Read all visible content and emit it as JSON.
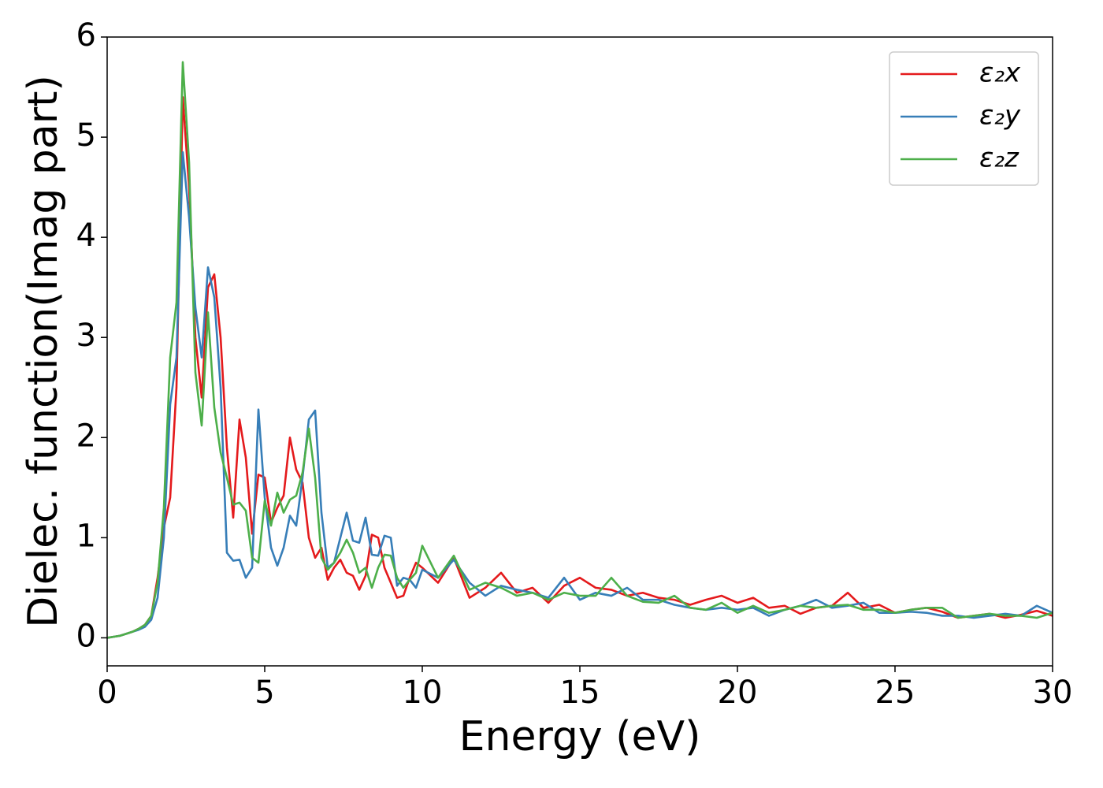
{
  "chart_data": {
    "type": "line",
    "xlabel": "Energy (eV)",
    "ylabel": "Dielec. function(Imag part)",
    "x": [
      0,
      0.2,
      0.4,
      0.6,
      0.8,
      1.0,
      1.2,
      1.4,
      1.6,
      1.8,
      2.0,
      2.2,
      2.4,
      2.6,
      2.8,
      3.0,
      3.2,
      3.4,
      3.6,
      3.8,
      4.0,
      4.2,
      4.4,
      4.6,
      4.8,
      5.0,
      5.2,
      5.4,
      5.6,
      5.8,
      6.0,
      6.2,
      6.4,
      6.6,
      6.8,
      7.0,
      7.2,
      7.4,
      7.6,
      7.8,
      8.0,
      8.2,
      8.4,
      8.6,
      8.8,
      9.0,
      9.2,
      9.4,
      9.6,
      9.8,
      10.0,
      10.5,
      11,
      11.5,
      12,
      12.5,
      13,
      13.5,
      14,
      14.5,
      15,
      15.5,
      16,
      16.5,
      17,
      17.5,
      18,
      18.5,
      19,
      19.5,
      20,
      20.5,
      21,
      21.5,
      22,
      22.5,
      23,
      23.5,
      24,
      24.5,
      25,
      25.5,
      26,
      26.5,
      27,
      27.5,
      28,
      28.5,
      29,
      29.5,
      30
    ],
    "series": [
      {
        "name": "ε₂x",
        "color": "#e41a1c",
        "values": [
          0,
          0.01,
          0.02,
          0.04,
          0.06,
          0.09,
          0.13,
          0.22,
          0.6,
          1.1,
          1.4,
          2.5,
          5.4,
          4.5,
          3.0,
          2.4,
          3.5,
          3.63,
          3.0,
          1.9,
          1.2,
          2.18,
          1.8,
          1.04,
          1.63,
          1.6,
          1.15,
          1.3,
          1.42,
          2.0,
          1.68,
          1.55,
          1.0,
          0.8,
          0.9,
          0.58,
          0.7,
          0.78,
          0.65,
          0.62,
          0.48,
          0.62,
          1.03,
          1.0,
          0.7,
          0.55,
          0.4,
          0.42,
          0.6,
          0.75,
          0.7,
          0.55,
          0.8,
          0.4,
          0.5,
          0.65,
          0.45,
          0.5,
          0.35,
          0.52,
          0.6,
          0.5,
          0.48,
          0.42,
          0.45,
          0.4,
          0.38,
          0.33,
          0.38,
          0.42,
          0.35,
          0.4,
          0.3,
          0.32,
          0.24,
          0.3,
          0.32,
          0.45,
          0.3,
          0.33,
          0.25,
          0.28,
          0.3,
          0.26,
          0.2,
          0.22,
          0.24,
          0.2,
          0.23,
          0.27,
          0.22
        ]
      },
      {
        "name": "ε₂y",
        "color": "#377eb8",
        "values": [
          0,
          0.01,
          0.02,
          0.04,
          0.06,
          0.08,
          0.11,
          0.18,
          0.4,
          1.0,
          2.33,
          2.8,
          4.85,
          4.2,
          3.3,
          2.8,
          3.7,
          3.4,
          2.5,
          0.85,
          0.77,
          0.78,
          0.6,
          0.7,
          2.28,
          1.4,
          0.9,
          0.72,
          0.9,
          1.22,
          1.12,
          1.6,
          2.18,
          2.27,
          1.25,
          0.7,
          0.75,
          1.0,
          1.25,
          0.97,
          0.95,
          1.2,
          0.83,
          0.82,
          1.02,
          1.0,
          0.52,
          0.6,
          0.58,
          0.5,
          0.68,
          0.6,
          0.78,
          0.55,
          0.42,
          0.52,
          0.48,
          0.45,
          0.4,
          0.6,
          0.38,
          0.45,
          0.42,
          0.5,
          0.38,
          0.38,
          0.33,
          0.3,
          0.28,
          0.3,
          0.28,
          0.3,
          0.22,
          0.28,
          0.32,
          0.38,
          0.3,
          0.32,
          0.35,
          0.25,
          0.25,
          0.26,
          0.25,
          0.22,
          0.22,
          0.2,
          0.22,
          0.24,
          0.22,
          0.32,
          0.25
        ]
      },
      {
        "name": "ε₂z",
        "color": "#4daf4a",
        "values": [
          0,
          0.01,
          0.02,
          0.04,
          0.06,
          0.09,
          0.13,
          0.22,
          0.55,
          1.3,
          2.8,
          3.35,
          5.75,
          4.75,
          2.65,
          2.12,
          3.25,
          2.3,
          1.85,
          1.6,
          1.33,
          1.35,
          1.27,
          0.8,
          0.75,
          1.37,
          1.12,
          1.45,
          1.25,
          1.38,
          1.42,
          1.65,
          2.09,
          1.6,
          0.8,
          0.68,
          0.75,
          0.85,
          0.98,
          0.85,
          0.65,
          0.7,
          0.5,
          0.7,
          0.83,
          0.82,
          0.6,
          0.5,
          0.58,
          0.65,
          0.92,
          0.6,
          0.82,
          0.48,
          0.55,
          0.5,
          0.42,
          0.45,
          0.38,
          0.45,
          0.42,
          0.42,
          0.6,
          0.42,
          0.36,
          0.35,
          0.42,
          0.3,
          0.28,
          0.35,
          0.25,
          0.32,
          0.25,
          0.28,
          0.32,
          0.3,
          0.32,
          0.33,
          0.28,
          0.28,
          0.25,
          0.28,
          0.3,
          0.3,
          0.2,
          0.22,
          0.24,
          0.22,
          0.22,
          0.2,
          0.25
        ]
      }
    ],
    "xlim": [
      0,
      30
    ],
    "xticks": [
      0,
      5,
      10,
      15,
      20,
      25,
      30
    ],
    "ylim": [
      -0.28,
      6.0
    ],
    "yticks": [
      0,
      1,
      2,
      3,
      4,
      5,
      6
    ],
    "grid": false,
    "legend": "upper right"
  }
}
